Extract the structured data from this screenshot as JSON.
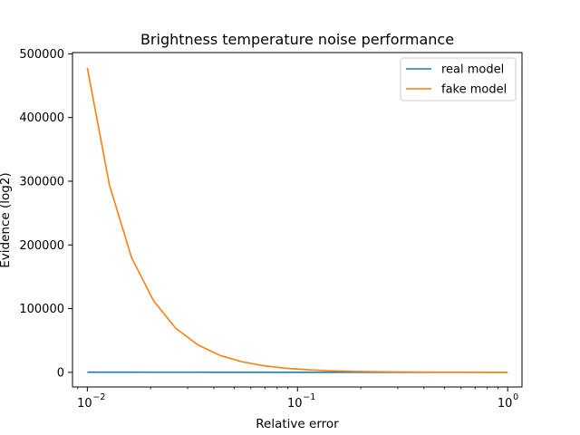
{
  "chart_data": {
    "type": "line",
    "title": "Brightness temperature noise performance",
    "xlabel": "Relative error",
    "ylabel": "Evidence (log2)",
    "xscale": "log",
    "xlim": [
      0.0085,
      1.17
    ],
    "ylim": [
      -23000,
      502000
    ],
    "grid": false,
    "legend_position": "top-right",
    "x_ticks": [
      {
        "value": 0.01,
        "base": "10",
        "exp": "−2"
      },
      {
        "value": 0.1,
        "base": "10",
        "exp": "−1"
      },
      {
        "value": 1,
        "base": "10",
        "exp": "0"
      }
    ],
    "y_ticks": [
      {
        "value": 0,
        "label": "0"
      },
      {
        "value": 100000,
        "label": "100000"
      },
      {
        "value": 200000,
        "label": "200000"
      },
      {
        "value": 300000,
        "label": "300000"
      },
      {
        "value": 400000,
        "label": "400000"
      },
      {
        "value": 500000,
        "label": "500000"
      }
    ],
    "x": [
      0.01,
      0.01274,
      0.01624,
      0.02069,
      0.02637,
      0.0336,
      0.04281,
      0.05456,
      0.06952,
      0.08859,
      0.1129,
      0.1438,
      0.1833,
      0.2336,
      0.2976,
      0.3793,
      0.4833,
      0.6158,
      0.7848,
      1.0
    ],
    "series": [
      {
        "name": "real model",
        "color": "#1f77b4",
        "values": [
          200,
          180,
          160,
          140,
          120,
          100,
          90,
          80,
          70,
          60,
          50,
          45,
          40,
          35,
          30,
          25,
          20,
          15,
          10,
          5
        ]
      },
      {
        "name": "fake model",
        "color": "#ff7f0e",
        "values": [
          478000,
          294000,
          180000,
          112000,
          69000,
          43000,
          26500,
          16500,
          10200,
          6300,
          3900,
          2400,
          1500,
          950,
          600,
          380,
          240,
          150,
          95,
          60
        ]
      }
    ]
  }
}
